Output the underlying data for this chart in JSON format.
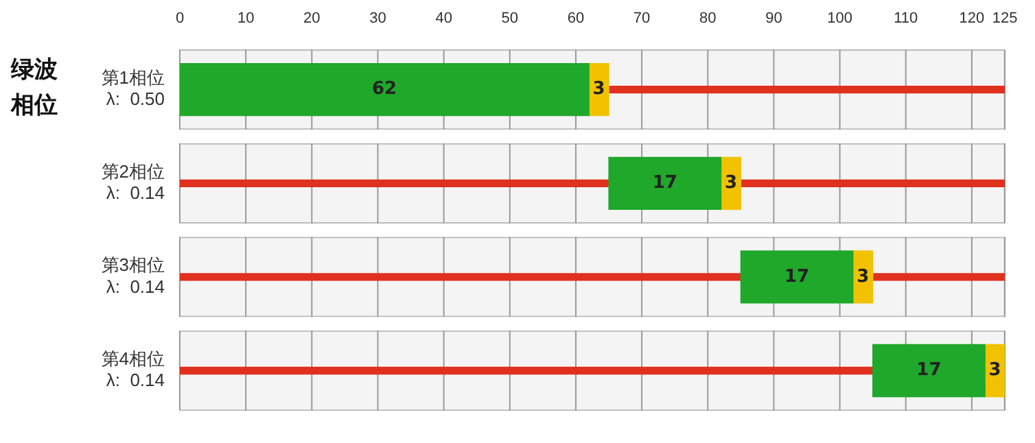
{
  "chart_data": {
    "type": "bar",
    "orientation": "horizontal",
    "ylabel": "绿波相位",
    "categories": [
      "第1相位\nλ:  0.50",
      "第2相位\nλ:  0.14",
      "第3相位\nλ:  0.14",
      "第4相位\nλ:  0.14"
    ],
    "series": [
      {
        "color": "#f4f4f4",
        "base": [
          0,
          0,
          0,
          0
        ],
        "values": [
          125,
          125,
          125,
          125
        ]
      },
      {
        "color": "#e0301e",
        "base": [
          null,
          0,
          0,
          0
        ],
        "values": [
          null,
          65,
          85,
          105
        ]
      },
      {
        "color": "#e0301e",
        "base": [
          65,
          85,
          105,
          null
        ],
        "values": [
          60,
          40,
          20,
          null
        ]
      },
      {
        "color": "#1fa82a",
        "base": [
          0,
          65,
          85,
          105
        ],
        "values": [
          62,
          17,
          17,
          17
        ],
        "value_labels": [
          "62",
          "17",
          "17",
          "17"
        ]
      },
      {
        "color": "#f2c200",
        "base": [
          62,
          82,
          102,
          122
        ],
        "values": [
          3,
          3,
          3,
          3
        ],
        "value_labels": [
          "3",
          "3",
          "3",
          "3"
        ]
      }
    ],
    "xlim": [
      0,
      125
    ],
    "xticks": [
      0,
      10,
      20,
      30,
      40,
      50,
      60,
      70,
      80,
      90,
      100,
      110,
      120,
      125
    ],
    "grid": "x",
    "legend": false
  }
}
